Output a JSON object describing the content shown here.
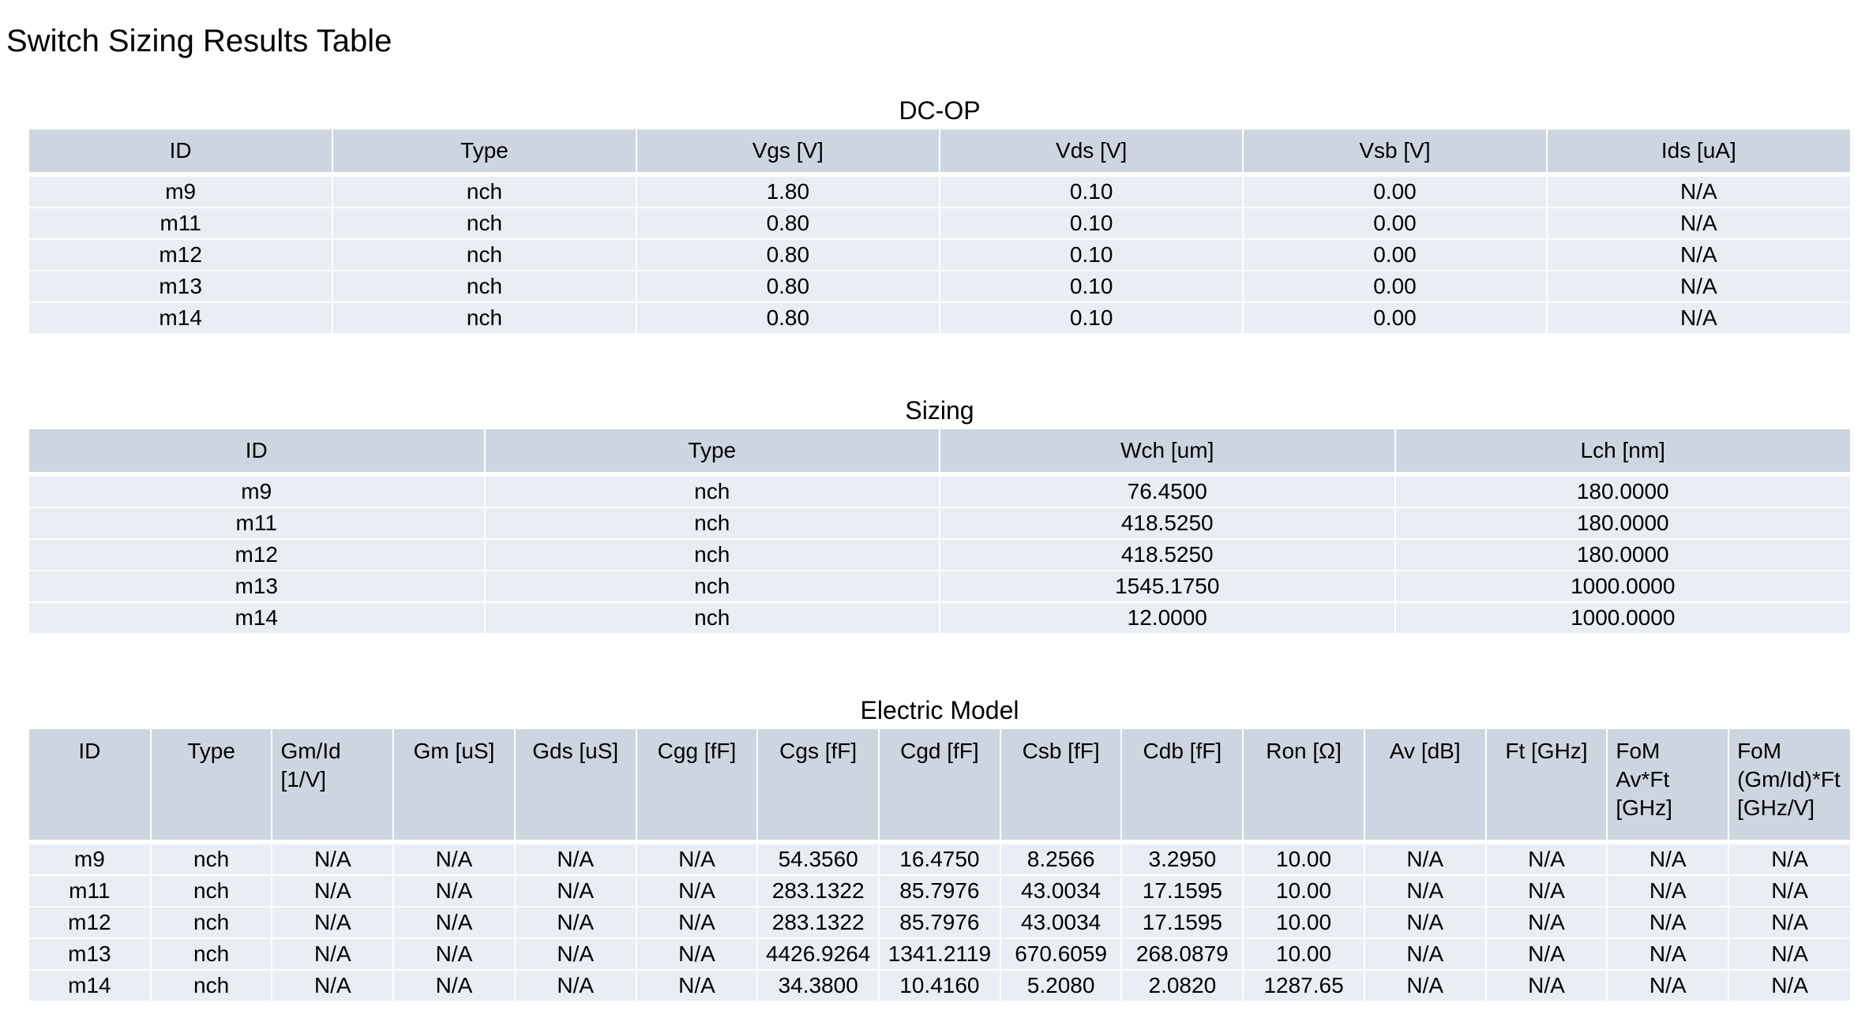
{
  "title": "Switch Sizing Results Table",
  "dcop": {
    "title": "DC-OP",
    "headers": [
      "ID",
      "Type",
      "Vgs [V]",
      "Vds [V]",
      "Vsb [V]",
      "Ids [uA]"
    ],
    "rows": [
      [
        "m9",
        "nch",
        "1.80",
        "0.10",
        "0.00",
        "N/A"
      ],
      [
        "m11",
        "nch",
        "0.80",
        "0.10",
        "0.00",
        "N/A"
      ],
      [
        "m12",
        "nch",
        "0.80",
        "0.10",
        "0.00",
        "N/A"
      ],
      [
        "m13",
        "nch",
        "0.80",
        "0.10",
        "0.00",
        "N/A"
      ],
      [
        "m14",
        "nch",
        "0.80",
        "0.10",
        "0.00",
        "N/A"
      ]
    ]
  },
  "sizing": {
    "title": "Sizing",
    "headers": [
      "ID",
      "Type",
      "Wch [um]",
      "Lch [nm]"
    ],
    "rows": [
      [
        "m9",
        "nch",
        "76.4500",
        "180.0000"
      ],
      [
        "m11",
        "nch",
        "418.5250",
        "180.0000"
      ],
      [
        "m12",
        "nch",
        "418.5250",
        "180.0000"
      ],
      [
        "m13",
        "nch",
        "1545.1750",
        "1000.0000"
      ],
      [
        "m14",
        "nch",
        "12.0000",
        "1000.0000"
      ]
    ]
  },
  "electric": {
    "title": "Electric Model",
    "headers": [
      "ID",
      "Type",
      "Gm/Id\n[1/V]",
      "Gm [uS]",
      "Gds [uS]",
      "Cgg [fF]",
      "Cgs [fF]",
      "Cgd [fF]",
      "Csb [fF]",
      "Cdb [fF]",
      "Ron [Ω]",
      "Av [dB]",
      "Ft [GHz]",
      "FoM\nAv*Ft\n[GHz]",
      "FoM\n(Gm/Id)*Ft\n[GHz/V]"
    ],
    "rows": [
      [
        "m9",
        "nch",
        "N/A",
        "N/A",
        "N/A",
        "N/A",
        "54.3560",
        "16.4750",
        "8.2566",
        "3.2950",
        "10.00",
        "N/A",
        "N/A",
        "N/A",
        "N/A"
      ],
      [
        "m11",
        "nch",
        "N/A",
        "N/A",
        "N/A",
        "N/A",
        "283.1322",
        "85.7976",
        "43.0034",
        "17.1595",
        "10.00",
        "N/A",
        "N/A",
        "N/A",
        "N/A"
      ],
      [
        "m12",
        "nch",
        "N/A",
        "N/A",
        "N/A",
        "N/A",
        "283.1322",
        "85.7976",
        "43.0034",
        "17.1595",
        "10.00",
        "N/A",
        "N/A",
        "N/A",
        "N/A"
      ],
      [
        "m13",
        "nch",
        "N/A",
        "N/A",
        "N/A",
        "N/A",
        "4426.9264",
        "1341.2119",
        "670.6059",
        "268.0879",
        "10.00",
        "N/A",
        "N/A",
        "N/A",
        "N/A"
      ],
      [
        "m14",
        "nch",
        "N/A",
        "N/A",
        "N/A",
        "N/A",
        "34.3800",
        "10.4160",
        "5.2080",
        "2.0820",
        "1287.65",
        "N/A",
        "N/A",
        "N/A",
        "N/A"
      ]
    ]
  }
}
